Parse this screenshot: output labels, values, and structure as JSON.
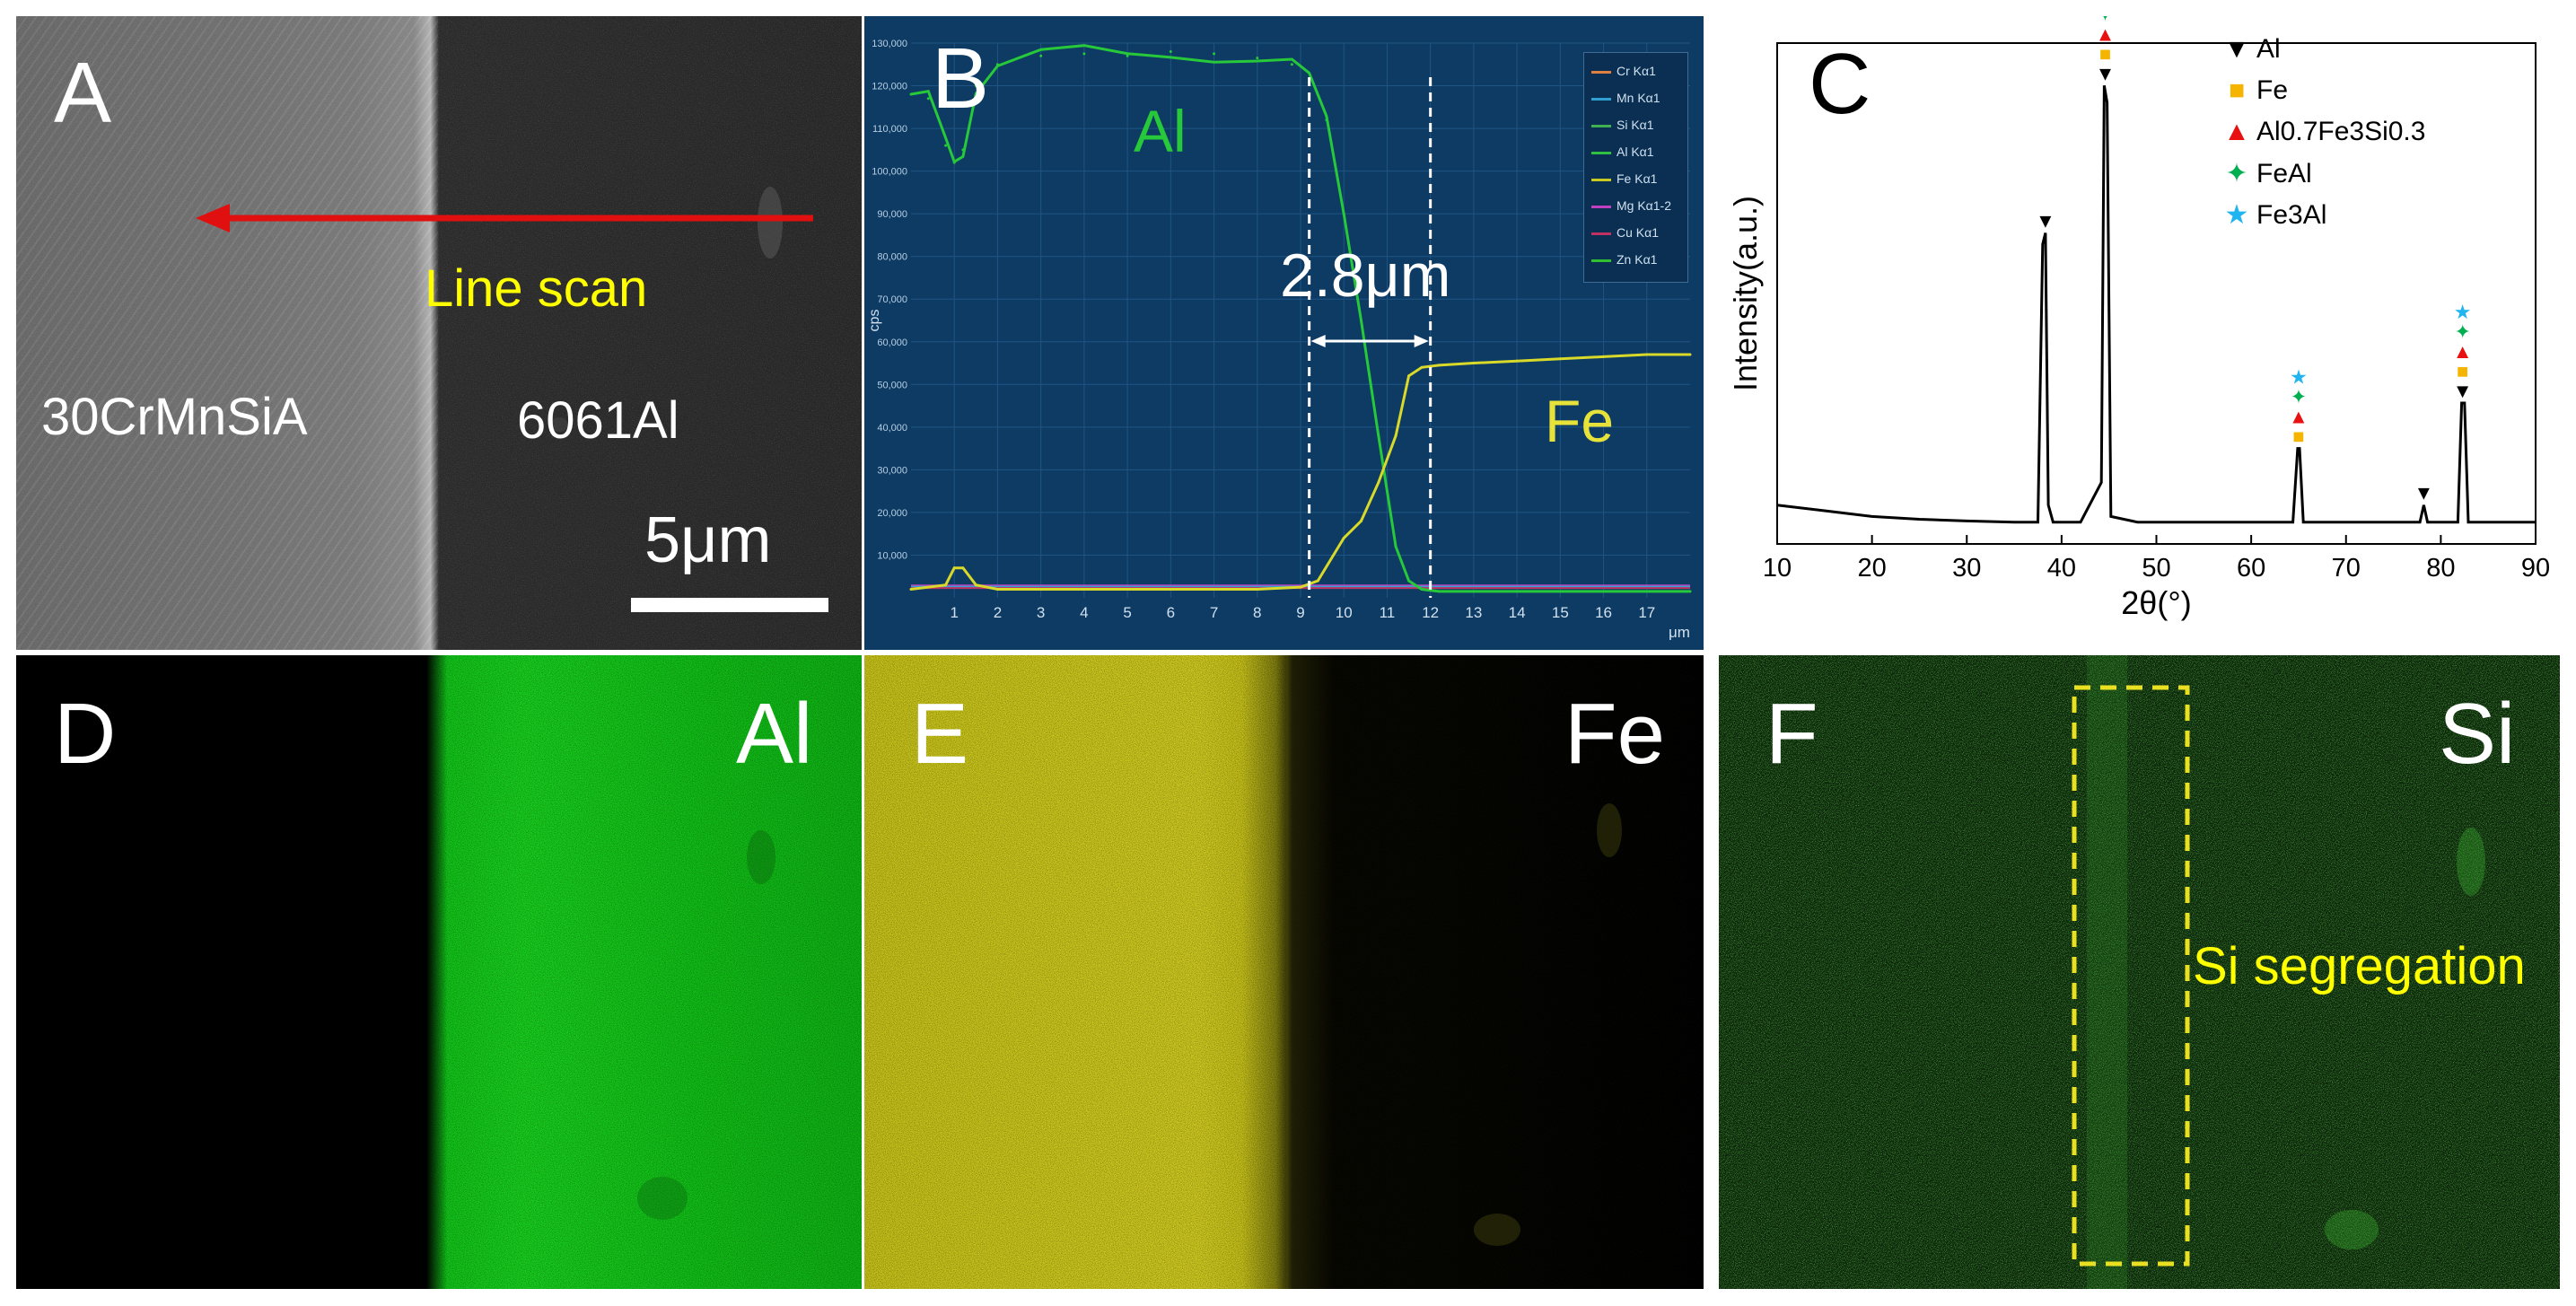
{
  "panel_a": {
    "label": "A",
    "line_scan": "Line scan",
    "left_material": "30CrMnSiA",
    "right_material": "6061Al",
    "scale_bar": "5μm"
  },
  "panel_b": {
    "label": "B",
    "al_label": "Al",
    "fe_label": "Fe",
    "width_annotation": "2.8μm",
    "x_unit": "μm",
    "y_unit": "cps",
    "legend": [
      "Cr Kα1",
      "Mn Kα1",
      "Si Kα1",
      "Al Kα1",
      "Fe Kα1",
      "Mg Kα1-2",
      "Cu Kα1",
      "Zn Kα1"
    ],
    "legend_colors": [
      "#e08040",
      "#30a0d0",
      "#40b050",
      "#30c040",
      "#c8c820",
      "#c040c0",
      "#c03060",
      "#30c030"
    ],
    "colors": {
      "background": "#0d3b63",
      "al": "#27c83a",
      "fe": "#d9d92a"
    }
  },
  "panel_c": {
    "label": "C",
    "legend": [
      {
        "symbol": "▼",
        "text": "Al",
        "color": "#000000"
      },
      {
        "symbol": "■",
        "text": "Fe",
        "color": "#f5b400"
      },
      {
        "symbol": "▲",
        "text": "Al0.7Fe3Si0.3",
        "color": "#e81010"
      },
      {
        "symbol": "✦",
        "text": "FeAl",
        "color": "#00b050"
      },
      {
        "symbol": "★",
        "text": "Fe3Al",
        "color": "#20b4f0"
      }
    ]
  },
  "panel_d": {
    "label": "D",
    "element": "Al",
    "color": "#19d31f"
  },
  "panel_e": {
    "label": "E",
    "element": "Fe",
    "color": "#d2cd20"
  },
  "panel_f": {
    "label": "F",
    "element": "Si",
    "annotation": "Si segregation",
    "color": "#2a8a24"
  },
  "chart_data": [
    {
      "panel": "B",
      "type": "line",
      "xlabel": "μm",
      "ylabel": "cps",
      "xlim": [
        0,
        18
      ],
      "ylim": [
        0,
        130000
      ],
      "x_ticks": [
        1,
        2,
        3,
        4,
        5,
        6,
        7,
        8,
        9,
        10,
        11,
        12,
        13,
        14,
        15,
        16,
        17
      ],
      "y_ticks": [
        "10,000",
        "20,000",
        "30,000",
        "40,000",
        "50,000",
        "60,000",
        "70,000",
        "80,000",
        "90,000",
        "100,000",
        "110,000",
        "120,000",
        "130,000"
      ],
      "marker_lines_x": [
        9.2,
        12.0
      ],
      "series": [
        {
          "name": "Al Kα1",
          "x": [
            0,
            0.4,
            0.8,
            1.0,
            1.2,
            1.5,
            2.0,
            3.0,
            4.0,
            5.0,
            6.0,
            7.0,
            8.0,
            8.8,
            9.2,
            9.6,
            10.0,
            10.4,
            10.8,
            11.2,
            11.5,
            11.8,
            12.2,
            14,
            16,
            18
          ],
          "y": [
            118000,
            117000,
            106000,
            102000,
            105000,
            120000,
            125000,
            127000,
            127500,
            127000,
            128000,
            127500,
            126500,
            125000,
            121000,
            112000,
            90000,
            65000,
            38000,
            12000,
            4000,
            2000,
            1500,
            1500,
            1500,
            1500
          ]
        },
        {
          "name": "Fe Kα1",
          "x": [
            0,
            0.8,
            1.0,
            1.2,
            1.5,
            2.0,
            4,
            6,
            8,
            9.0,
            9.4,
            10.0,
            10.4,
            10.8,
            11.2,
            11.5,
            11.8,
            12.2,
            13,
            14,
            15,
            16,
            17,
            18
          ],
          "y": [
            2000,
            3000,
            7000,
            7000,
            3000,
            2000,
            2000,
            2000,
            2000,
            2500,
            4000,
            14000,
            18000,
            27000,
            38000,
            52000,
            54000,
            54500,
            55000,
            55500,
            56000,
            56500,
            57000,
            57000
          ]
        }
      ]
    },
    {
      "panel": "C",
      "type": "line",
      "xlabel": "2θ(°)",
      "ylabel": "Intensity(a.u.)",
      "xlim": [
        10,
        90
      ],
      "x_ticks": [
        10,
        20,
        30,
        40,
        50,
        60,
        70,
        80,
        90
      ],
      "series": [
        {
          "name": "",
          "x": [
            10,
            15,
            20,
            25,
            30,
            35,
            37.5,
            38.0,
            38.3,
            38.6,
            39.1,
            42,
            44.2,
            44.5,
            44.8,
            45.2,
            48,
            55,
            64.4,
            64.9,
            65.1,
            65.5,
            70,
            75,
            77.8,
            78.2,
            78.6,
            81.8,
            82.2,
            82.5,
            82.9,
            86,
            90
          ],
          "y": [
            4,
            3,
            2,
            1.5,
            1.2,
            1,
            1,
            50,
            52,
            4,
            1,
            1,
            8,
            78,
            75,
            2,
            1,
            1,
            1,
            14,
            14,
            1,
            1,
            1,
            1,
            4,
            1,
            1,
            22,
            22,
            1,
            1,
            1
          ]
        }
      ],
      "peaks": [
        {
          "x": 38.3,
          "phases": [
            "Al"
          ]
        },
        {
          "x": 44.6,
          "phases": [
            "Al",
            "Fe",
            "Al0.7Fe3Si0.3",
            "FeAl",
            "Fe3Al"
          ]
        },
        {
          "x": 65.0,
          "phases": [
            "Fe",
            "Al0.7Fe3Si0.3",
            "FeAl",
            "Fe3Al"
          ]
        },
        {
          "x": 78.2,
          "phases": [
            "Al"
          ]
        },
        {
          "x": 82.3,
          "phases": [
            "Al",
            "Fe",
            "Al0.7Fe3Si0.3",
            "FeAl",
            "Fe3Al"
          ]
        }
      ]
    }
  ]
}
